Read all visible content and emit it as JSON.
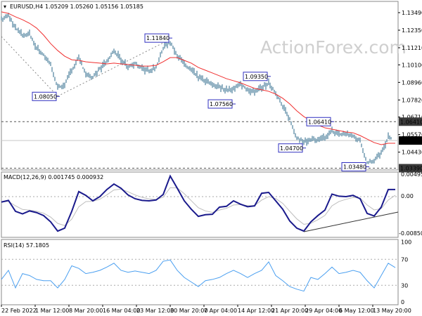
{
  "header": {
    "symbol": "EURUSD,H4",
    "ohlc": "1.05209 1.05260 1.05156 1.05185"
  },
  "watermark": "ActionForex.com",
  "colors": {
    "bars": "#5a8aa4",
    "ma": "#f03030",
    "macd": "#1a1a8c",
    "signal": "#bdbdbd",
    "rsi": "#4a9ff0",
    "label_border": "#3030c0"
  },
  "chart_data": [
    {
      "type": "line",
      "name": "EURUSD,H4",
      "ylim": [
        1.0339,
        1.1349
      ],
      "y_ticks": [
        "1.13490",
        "1.12350",
        "1.11210",
        "1.10100",
        "1.08960",
        "1.07820",
        "1.06710",
        "1.05570",
        "1.04430"
      ],
      "close": [
        1.1303,
        1.1331,
        1.1249,
        1.1203,
        1.1212,
        1.1121,
        1.1075,
        1.1012,
        1.0861,
        1.0884,
        1.0975,
        1.1066,
        1.0939,
        1.0929,
        1.0984,
        1.103,
        1.1103,
        1.1043,
        1.0998,
        1.1021,
        1.0984,
        1.0975,
        1.0993,
        1.1121,
        1.1157,
        1.1075,
        1.1012,
        1.0975,
        1.0929,
        1.0907,
        1.0884,
        1.0866,
        1.0848,
        1.0857,
        1.0884,
        1.0848,
        1.0838,
        1.0861,
        1.0893,
        1.0829,
        1.0738,
        1.0656,
        1.0537,
        1.051,
        1.0528,
        1.0519,
        1.0537,
        1.0583,
        1.0556,
        1.0565,
        1.0546,
        1.0519,
        1.0373,
        1.0391,
        1.0437,
        1.0542,
        1.05185
      ],
      "ma": [
        1.1354,
        1.1344,
        1.1322,
        1.1303,
        1.128,
        1.1249,
        1.1203,
        1.1148,
        1.1103,
        1.1066,
        1.1043,
        1.1039,
        1.103,
        1.1025,
        1.1021,
        1.1016,
        1.1021,
        1.1016,
        1.1012,
        1.1007,
        1.1002,
        1.1002,
        1.1007,
        1.103,
        1.1057,
        1.1057,
        1.1039,
        1.1021,
        1.0993,
        1.0975,
        1.0957,
        1.0939,
        1.092,
        1.0907,
        1.0893,
        1.0875,
        1.0857,
        1.0848,
        1.0838,
        1.082,
        1.0793,
        1.0756,
        1.0711,
        1.0674,
        1.0647,
        1.0619,
        1.0601,
        1.0592,
        1.0583,
        1.0574,
        1.0569,
        1.0551,
        1.0528,
        1.0505,
        1.0492,
        1.0501,
        1.0501
      ],
      "annotations": [
        {
          "text": "1.08050",
          "price": 1.0805,
          "sample": 8
        },
        {
          "text": "1.11840",
          "price": 1.1184,
          "sample": 24
        },
        {
          "text": "1.07560",
          "price": 1.0756,
          "sample": 33
        },
        {
          "text": "1.09350",
          "price": 1.0935,
          "sample": 38
        },
        {
          "text": "1.04700",
          "price": 1.047,
          "sample": 43
        },
        {
          "text": "1.06410",
          "price": 1.0641,
          "sample": 47
        },
        {
          "text": "1.03480",
          "price": 1.0348,
          "sample": 52
        }
      ],
      "levels": [
        {
          "text": "1.06410",
          "price": 1.0641,
          "style": "dashed"
        },
        {
          "text": "1.03390",
          "price": 1.0339,
          "style": "dashed"
        },
        {
          "text": "1.05185",
          "price": 1.05185,
          "style": "current"
        }
      ]
    },
    {
      "type": "line",
      "name": "MACD(12,26,9)",
      "values_text": "0.001745 0.000932",
      "ylim": [
        -0.008501,
        0.004956
      ],
      "y_ticks": [
        "0.004956",
        "0.00",
        "-0.008501"
      ],
      "macd": [
        -0.0013,
        -0.0009,
        -0.0035,
        -0.0041,
        -0.0034,
        -0.0038,
        -0.0045,
        -0.006,
        -0.0082,
        -0.0075,
        -0.0035,
        0.0012,
        0.0003,
        -0.001,
        0.0,
        0.0017,
        0.003,
        0.002,
        0.0004,
        -0.0005,
        -0.0009,
        -0.001,
        -0.0008,
        0.0005,
        0.0049,
        0.002,
        -0.001,
        -0.003,
        -0.0047,
        -0.0043,
        -0.0042,
        -0.0025,
        -0.0023,
        -0.001,
        -0.0018,
        -0.0024,
        -0.0022,
        0.0008,
        0.001,
        -0.001,
        -0.003,
        -0.0058,
        -0.0075,
        -0.0082,
        -0.006,
        -0.0045,
        -0.0032,
        0.0006,
        0.0001,
        0.0,
        0.0003,
        -0.0005,
        -0.004,
        -0.0046,
        -0.0025,
        0.0017,
        0.0017
      ]
    },
    {
      "type": "line",
      "name": "RSI(14)",
      "values_text": "57.1805",
      "ylim": [
        0,
        100
      ],
      "y_ticks": [
        "100",
        "70",
        "30",
        "0"
      ],
      "rsi": [
        39,
        53,
        26,
        48,
        45,
        39,
        37,
        37,
        26,
        39,
        60,
        56,
        48,
        50,
        53,
        58,
        64,
        53,
        50,
        52,
        50,
        48,
        53,
        67,
        69,
        53,
        42,
        35,
        28,
        37,
        39,
        42,
        48,
        53,
        48,
        42,
        48,
        53,
        66,
        45,
        37,
        28,
        24,
        21,
        42,
        39,
        48,
        58,
        48,
        50,
        53,
        50,
        37,
        26,
        45,
        64,
        57.18
      ]
    }
  ],
  "x_ticks": [
    "22 Feb 2022",
    "1 Mar 12:00",
    "8 Mar 20:00",
    "16 Mar 04:00",
    "23 Mar 12:00",
    "30 Mar 20:00",
    "7 Apr 04:00",
    "14 Apr 12:00",
    "21 Apr 20:00",
    "29 Apr 04:00",
    "6 May 12:00",
    "13 May 20:00"
  ]
}
